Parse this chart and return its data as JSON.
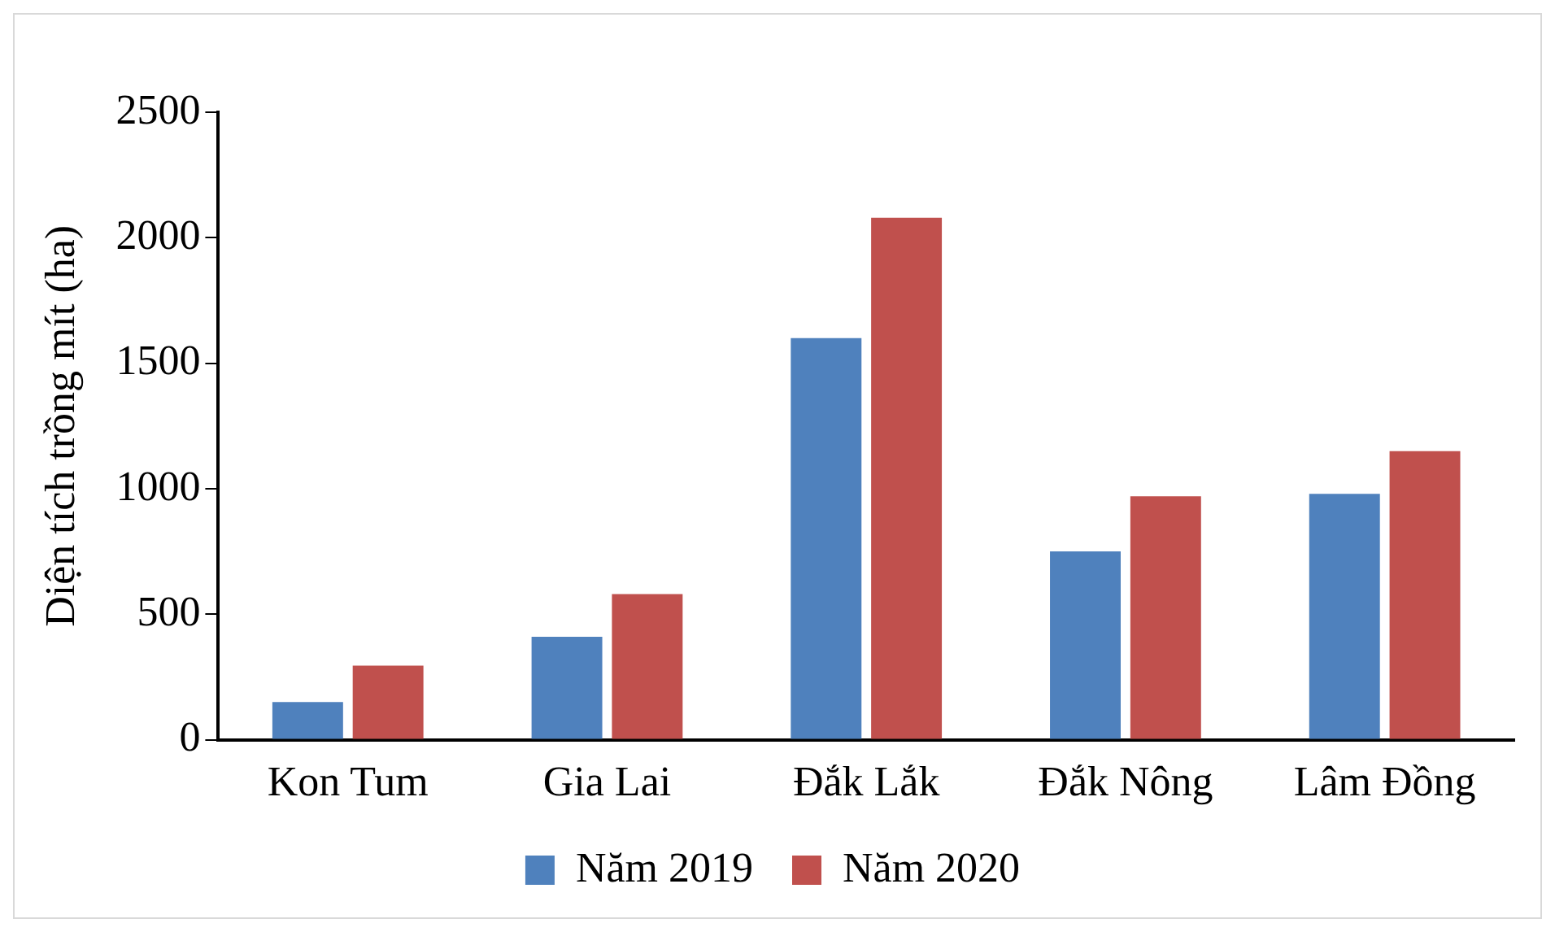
{
  "chart_data": {
    "type": "bar",
    "ylabel": "Diện tích trồng mít (ha)",
    "categories": [
      "Kon Tum",
      "Gia Lai",
      "Đắk Lắk",
      "Đắk Nông",
      "Lâm Đồng"
    ],
    "series": [
      {
        "name": "Năm 2019",
        "color": "#4f81bd",
        "values": [
          150,
          410,
          1600,
          750,
          980
        ]
      },
      {
        "name": "Năm 2020",
        "color": "#c0504d",
        "values": [
          295,
          580,
          2080,
          970,
          1150
        ]
      }
    ],
    "ylim": [
      0,
      2500
    ],
    "yticks": [
      0,
      500,
      1000,
      1500,
      2000,
      2500
    ],
    "grid": false,
    "legend": "bottom"
  }
}
